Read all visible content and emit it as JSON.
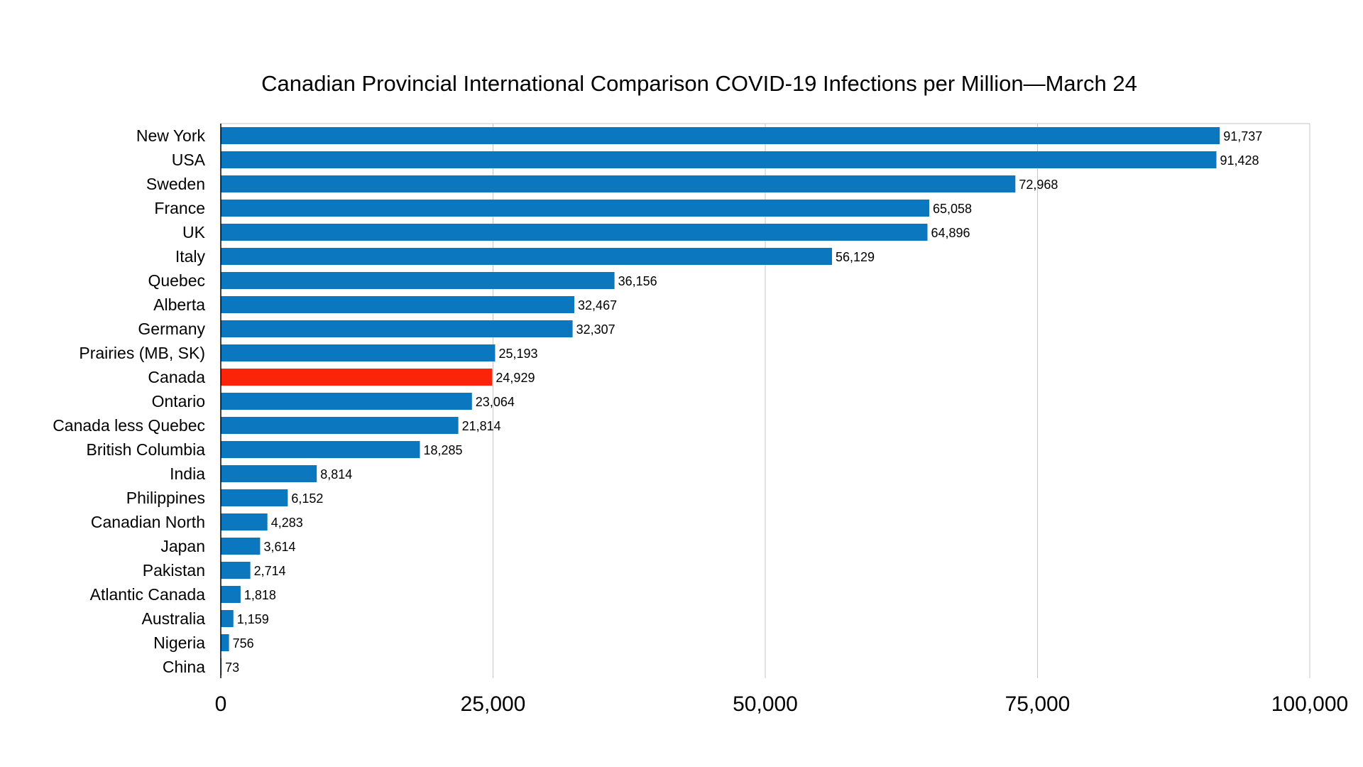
{
  "chart_data": {
    "type": "bar",
    "orientation": "horizontal",
    "title": "Canadian Provincial International Comparison COVID-19 Infections per Million—March 24",
    "xlabel": "",
    "ylabel": "",
    "xlim": [
      0,
      100000
    ],
    "x_ticks": [
      0,
      25000,
      50000,
      75000,
      100000
    ],
    "x_tick_labels": [
      "0",
      "25,000",
      "50,000",
      "75,000",
      "100,000"
    ],
    "grid": "vertical",
    "legend": "none",
    "categories": [
      "New York",
      "USA",
      "Sweden",
      "France",
      "UK",
      "Italy",
      "Quebec",
      "Alberta",
      "Germany",
      "Prairies (MB, SK)",
      "Canada",
      "Ontario",
      "Canada less Quebec",
      "British Columbia",
      "India",
      "Philippines",
      "Canadian North",
      "Japan",
      "Pakistan",
      "Atlantic Canada",
      "Australia",
      "Nigeria",
      "China"
    ],
    "values": [
      91737,
      91428,
      72968,
      65058,
      64896,
      56129,
      36156,
      32467,
      32307,
      25193,
      24929,
      23064,
      21814,
      18285,
      8814,
      6152,
      4283,
      3614,
      2714,
      1818,
      1159,
      756,
      73
    ],
    "value_labels": [
      "91,737",
      "91,428",
      "72,968",
      "65,058",
      "64,896",
      "56,129",
      "36,156",
      "32,467",
      "32,307",
      "25,193",
      "24,929",
      "23,064",
      "21,814",
      "18,285",
      "8,814",
      "6,152",
      "4,283",
      "3,614",
      "2,714",
      "1,818",
      "1,159",
      "756",
      "73"
    ],
    "highlight_category": "Canada",
    "colors": {
      "bar": "#0a77bf",
      "highlight": "#fb2409",
      "grid": "#c6c6c6",
      "axis": "#000000"
    }
  }
}
